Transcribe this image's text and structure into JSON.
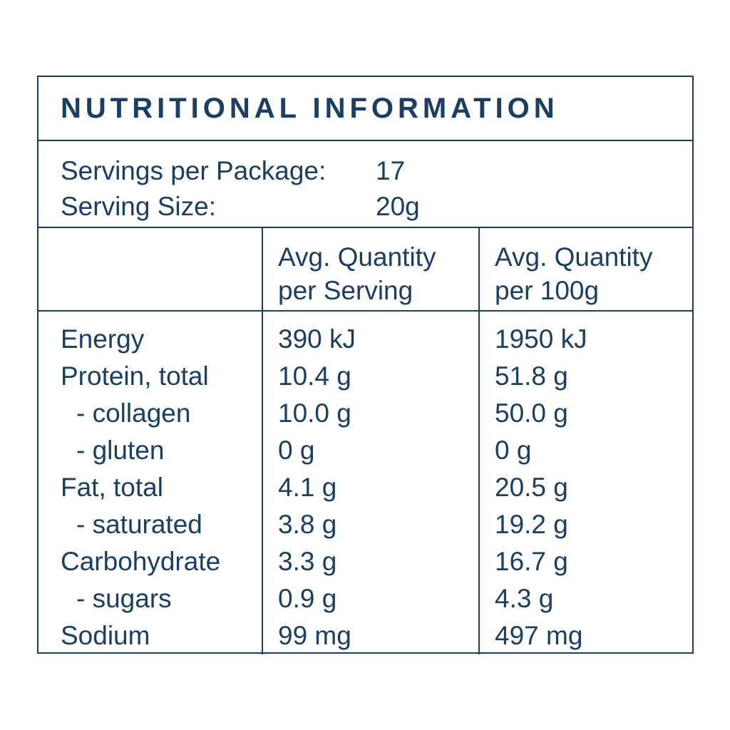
{
  "colors": {
    "text": "#1b3e63",
    "border": "#1b3e63",
    "background": "#ffffff"
  },
  "title": "NUTRITIONAL INFORMATION",
  "serving_info": {
    "servings_per_package_label": "Servings per Package:",
    "servings_per_package_value": "17",
    "serving_size_label": "Serving Size:",
    "serving_size_value": "20g"
  },
  "columns": {
    "per_serving": {
      "line1": "Avg. Quantity",
      "line2": "per Serving"
    },
    "per_100g": {
      "line1": "Avg. Quantity",
      "line2": "per 100g"
    }
  },
  "rows": [
    {
      "label": "Energy",
      "per_serving": "390 kJ",
      "per_100g": "1950 kJ"
    },
    {
      "label": "Protein, total",
      "per_serving": "10.4 g",
      "per_100g": "51.8 g"
    },
    {
      "label": "- collagen",
      "per_serving": "10.0 g",
      "per_100g": "50.0 g"
    },
    {
      "label": "- gluten",
      "per_serving": "0 g",
      "per_100g": "0 g"
    },
    {
      "label": "Fat, total",
      "per_serving": "4.1 g",
      "per_100g": "20.5 g"
    },
    {
      "label": "- saturated",
      "per_serving": "3.8 g",
      "per_100g": "19.2 g"
    },
    {
      "label": "Carbohydrate",
      "per_serving": "3.3 g",
      "per_100g": "16.7 g"
    },
    {
      "label": "- sugars",
      "per_serving": "0.9 g",
      "per_100g": "4.3 g"
    },
    {
      "label": "Sodium",
      "per_serving": "99 mg",
      "per_100g": "497 mg"
    }
  ]
}
